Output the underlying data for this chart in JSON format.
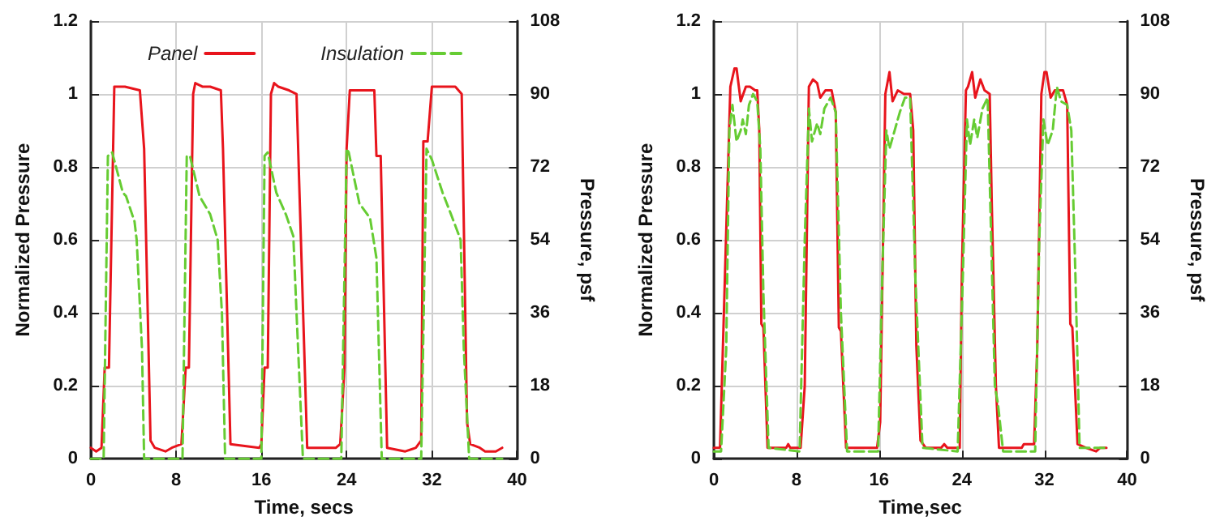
{
  "chart_data": [
    {
      "type": "line",
      "xlabel": "Time, secs",
      "ylabel": "Normalized Pressure",
      "y2label": "Pressure, psf",
      "xlim": [
        0,
        40
      ],
      "xticks": [
        0,
        8,
        16,
        24,
        32,
        40
      ],
      "ylim": [
        0,
        1.2
      ],
      "yticks": [
        0,
        0.2,
        0.4,
        0.6,
        0.8,
        1,
        1.2
      ],
      "y2lim": [
        0,
        108
      ],
      "y2ticks": [
        0,
        18,
        36,
        54,
        72,
        90,
        108
      ],
      "grid": true,
      "legend": "top",
      "marker": "none",
      "series": [
        {
          "name": "Panel",
          "color": "#e8141c",
          "line_style": "solid",
          "x": [
            0,
            0.5,
            1,
            1.3,
            1.7,
            2.2,
            3.2,
            4.6,
            5,
            5.6,
            6,
            7,
            7.6,
            8.5,
            8.9,
            9.2,
            9.6,
            9.8,
            10.5,
            11.2,
            12.2,
            12.4,
            13.1,
            15.8,
            16,
            16.3,
            16.6,
            16.9,
            17.2,
            17.6,
            18.6,
            19.3,
            20.3,
            23,
            23.4,
            23.8,
            24,
            24.3,
            26.6,
            26.8,
            27.2,
            27.8,
            29.5,
            30.5,
            31,
            31.2,
            31.6,
            32,
            33.5,
            34.2,
            34.8,
            35.3,
            35.6,
            36.5,
            37,
            38,
            38.6
          ],
          "values": [
            0.03,
            0.02,
            0.03,
            0.25,
            0.25,
            1.02,
            1.02,
            1.01,
            0.85,
            0.05,
            0.03,
            0.02,
            0.03,
            0.04,
            0.25,
            0.25,
            1.0,
            1.03,
            1.02,
            1.02,
            1.01,
            0.85,
            0.04,
            0.03,
            0.04,
            0.25,
            0.25,
            1.0,
            1.03,
            1.02,
            1.01,
            1.0,
            0.03,
            0.03,
            0.04,
            0.25,
            0.85,
            1.01,
            1.01,
            0.83,
            0.83,
            0.03,
            0.02,
            0.03,
            0.05,
            0.87,
            0.87,
            1.02,
            1.02,
            1.02,
            1.0,
            0.1,
            0.04,
            0.03,
            0.02,
            0.02,
            0.03
          ]
        },
        {
          "name": "Insulation",
          "color": "#66cc33",
          "line_style": "dashed",
          "x": [
            0,
            1.2,
            1.6,
            2,
            3,
            3.3,
            4.1,
            4.3,
            4.8,
            5,
            8.6,
            9,
            9.3,
            10.2,
            11.2,
            11.9,
            12.3,
            12.6,
            16,
            16.3,
            16.6,
            17.4,
            18.3,
            19,
            19.3,
            19.9,
            23.5,
            24,
            24.2,
            25.2,
            26.2,
            26.8,
            27.3,
            31,
            31.5,
            32,
            33,
            33.8,
            34.7,
            35,
            35.5,
            38.6
          ],
          "values": [
            0,
            0,
            0.83,
            0.84,
            0.73,
            0.72,
            0.65,
            0.6,
            0.3,
            0,
            0,
            0.83,
            0.83,
            0.72,
            0.67,
            0.6,
            0.4,
            0,
            0,
            0.83,
            0.84,
            0.73,
            0.67,
            0.61,
            0.4,
            0,
            0,
            0.85,
            0.84,
            0.7,
            0.66,
            0.55,
            0,
            0,
            0.85,
            0.82,
            0.73,
            0.67,
            0.6,
            0.3,
            0,
            0
          ]
        }
      ]
    },
    {
      "type": "line",
      "xlabel": "Time,sec",
      "ylabel": "Normalized Pressure",
      "y2label": "Pressure, psf",
      "xlim": [
        0,
        40
      ],
      "xticks": [
        0,
        8,
        16,
        24,
        32,
        40
      ],
      "ylim": [
        0,
        1.2
      ],
      "yticks": [
        0,
        0.2,
        0.4,
        0.6,
        0.8,
        1,
        1.2
      ],
      "y2lim": [
        0,
        108
      ],
      "y2ticks": [
        0,
        18,
        36,
        54,
        72,
        90,
        108
      ],
      "grid": true,
      "marker": "none",
      "series": [
        {
          "color": "#e8141c",
          "line_style": "solid",
          "x": [
            0,
            0.6,
            1.6,
            2,
            2.2,
            2.6,
            3.1,
            3.5,
            4,
            4.2,
            4.4,
            4.6,
            4.8,
            5.2,
            7,
            7.2,
            7.4,
            8.4,
            8.8,
            9.2,
            9.6,
            10,
            10.3,
            10.8,
            11.4,
            11.8,
            12.1,
            12.3,
            12.8,
            15.8,
            16.1,
            16.6,
            17,
            17.3,
            17.8,
            18.4,
            19,
            19.3,
            19.6,
            20,
            20.5,
            22,
            22.3,
            22.6,
            23.8,
            24,
            24.4,
            24.6,
            25,
            25.3,
            25.8,
            26.2,
            26.7,
            26.9,
            27.3,
            27.6,
            29.8,
            30,
            31,
            31.3,
            31.7,
            32,
            32.2,
            32.6,
            33,
            33.8,
            34.2,
            34.5,
            34.7,
            35.2,
            36,
            37,
            37.4,
            38
          ],
          "values": [
            0.03,
            0.03,
            1.02,
            1.07,
            1.07,
            0.98,
            1.02,
            1.02,
            1.01,
            1.01,
            0.9,
            0.37,
            0.36,
            0.03,
            0.03,
            0.04,
            0.03,
            0.03,
            0.2,
            1.02,
            1.04,
            1.03,
            0.99,
            1.01,
            1.01,
            0.95,
            0.36,
            0.35,
            0.03,
            0.03,
            0.1,
            1.0,
            1.06,
            0.98,
            1.01,
            1.0,
            1.0,
            0.9,
            0.31,
            0.05,
            0.03,
            0.03,
            0.04,
            0.03,
            0.03,
            0.5,
            1.01,
            1.02,
            1.06,
            0.99,
            1.04,
            1.01,
            1.0,
            0.7,
            0.2,
            0.03,
            0.03,
            0.04,
            0.04,
            0.3,
            1.0,
            1.06,
            1.06,
            0.99,
            1.01,
            1.01,
            0.97,
            0.37,
            0.36,
            0.04,
            0.03,
            0.02,
            0.03,
            0.03
          ]
        },
        {
          "color": "#66cc33",
          "line_style": "dashed",
          "x": [
            0,
            0.7,
            1.2,
            1.5,
            1.8,
            2.2,
            2.6,
            2.8,
            3.1,
            3.4,
            3.8,
            4.2,
            4.5,
            4.8,
            5.3,
            8.3,
            8.8,
            9.2,
            9.5,
            10,
            10.3,
            10.7,
            11.3,
            11.8,
            12.3,
            12.9,
            15.9,
            16.3,
            16.7,
            17,
            17.5,
            18,
            18.5,
            19,
            19.5,
            20.2,
            23.6,
            24.1,
            24.5,
            24.8,
            25.2,
            25.5,
            26,
            26.5,
            27.2,
            27.5,
            28,
            31.1,
            31.5,
            31.9,
            32.3,
            32.8,
            33.2,
            33.6,
            34.2,
            34.6,
            35,
            35.4,
            37.5,
            38
          ],
          "values": [
            0.02,
            0.02,
            0.3,
            0.9,
            0.97,
            0.87,
            0.9,
            0.93,
            0.89,
            0.97,
            1.0,
            0.98,
            0.85,
            0.45,
            0.03,
            0.02,
            0.6,
            0.96,
            0.87,
            0.92,
            0.89,
            0.96,
            0.99,
            0.95,
            0.4,
            0.02,
            0.02,
            0.5,
            0.9,
            0.85,
            0.9,
            0.95,
            0.99,
            0.99,
            0.5,
            0.03,
            0.02,
            0.5,
            0.93,
            0.86,
            0.93,
            0.88,
            0.96,
            0.99,
            0.2,
            0.15,
            0.02,
            0.02,
            0.6,
            0.93,
            0.86,
            0.9,
            1.02,
            0.98,
            0.97,
            0.9,
            0.5,
            0.03,
            0.03,
            0.03
          ]
        }
      ]
    }
  ]
}
